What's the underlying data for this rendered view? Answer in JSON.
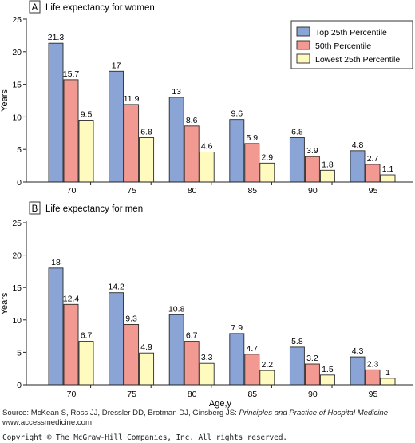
{
  "colors": {
    "top": "#8aa4d6",
    "mid": "#f29a92",
    "low": "#fffbbf"
  },
  "legend_entries": [
    "Top 25th Percentile",
    "50th Percentile",
    "Lowest 25th Percentile"
  ],
  "chart_data": [
    {
      "type": "bar",
      "panel_letter": "A",
      "title": "Life expectancy for women",
      "xlabel": "",
      "ylabel": "Years",
      "ylim": [
        0,
        25
      ],
      "yticks": [
        0,
        5,
        10,
        15,
        20,
        25
      ],
      "grid": false,
      "legend_position": "top-right",
      "categories": [
        "70",
        "75",
        "80",
        "85",
        "90",
        "95"
      ],
      "series": [
        {
          "name": "Top 25th Percentile",
          "values": [
            21.3,
            17,
            13,
            9.6,
            6.8,
            4.8
          ],
          "labels": [
            "21.3",
            "17",
            "13",
            "9.6",
            "6.8",
            "4.8"
          ]
        },
        {
          "name": "50th Percentile",
          "values": [
            15.7,
            11.9,
            8.6,
            5.9,
            3.9,
            2.7
          ],
          "labels": [
            "15.7",
            "11.9",
            "8.6",
            "5.9",
            "3.9",
            "2.7"
          ]
        },
        {
          "name": "Lowest 25th Percentile",
          "values": [
            9.5,
            6.8,
            4.6,
            2.9,
            1.8,
            1.1
          ],
          "labels": [
            "9.5",
            "6.8",
            "4.6",
            "2.9",
            "1.8",
            "1.1"
          ]
        }
      ]
    },
    {
      "type": "bar",
      "panel_letter": "B",
      "title": "Life expectancy for men",
      "xlabel": "Age,y",
      "ylabel": "Years",
      "ylim": [
        0,
        25
      ],
      "yticks": [
        0,
        5,
        10,
        15,
        20,
        25
      ],
      "grid": false,
      "categories": [
        "70",
        "75",
        "80",
        "85",
        "90",
        "95"
      ],
      "series": [
        {
          "name": "Top 25th Percentile",
          "values": [
            18,
            14.2,
            10.8,
            7.9,
            5.8,
            4.3
          ],
          "labels": [
            "18",
            "14.2",
            "10.8",
            "7.9",
            "5.8",
            "4.3"
          ]
        },
        {
          "name": "50th Percentile",
          "values": [
            12.4,
            9.3,
            6.7,
            4.7,
            3.2,
            2.3
          ],
          "labels": [
            "12.4",
            "9.3",
            "6.7",
            "4.7",
            "3.2",
            "2.3"
          ]
        },
        {
          "name": "Lowest 25th Percentile",
          "values": [
            6.7,
            4.9,
            3.3,
            2.2,
            1.5,
            1
          ],
          "labels": [
            "6.7",
            "4.9",
            "3.3",
            "2.2",
            "1.5",
            "1"
          ]
        }
      ]
    }
  ],
  "source": {
    "prefix": "Source: McKean S, Ross JJ, Dressler DD, Brotman DJ, Ginsberg JS:",
    "book_title": "Principles and Practice of Hospital Medicine",
    "suffix": ": www.accessmedicine.com"
  },
  "copyright": "Copyright © The McGraw-Hill Companies, Inc. All rights reserved."
}
